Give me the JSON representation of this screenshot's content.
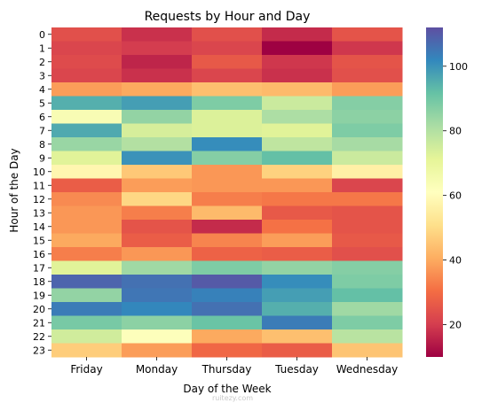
{
  "chart_data": {
    "type": "heatmap",
    "title": "Requests by Hour and Day",
    "xlabel": "Day of the Week",
    "ylabel": "Hour of the Day",
    "categories": [
      "Friday",
      "Monday",
      "Thursday",
      "Tuesday",
      "Wednesday"
    ],
    "rows": [
      "0",
      "1",
      "2",
      "3",
      "4",
      "5",
      "6",
      "7",
      "8",
      "9",
      "10",
      "11",
      "12",
      "13",
      "14",
      "15",
      "16",
      "17",
      "18",
      "19",
      "20",
      "21",
      "22",
      "23"
    ],
    "values": [
      [
        24,
        18,
        24,
        17,
        25
      ],
      [
        22,
        20,
        22,
        10,
        19
      ],
      [
        23,
        16,
        26,
        19,
        25
      ],
      [
        22,
        18,
        22,
        18,
        24
      ],
      [
        38,
        40,
        44,
        43,
        38
      ],
      [
        95,
        98,
        88,
        76,
        87
      ],
      [
        64,
        85,
        73,
        81,
        86
      ],
      [
        96,
        74,
        73,
        72,
        88
      ],
      [
        84,
        80,
        101,
        78,
        82
      ],
      [
        72,
        100,
        87,
        92,
        76
      ],
      [
        58,
        46,
        37,
        48,
        56
      ],
      [
        27,
        38,
        37,
        37,
        22
      ],
      [
        35,
        49,
        33,
        32,
        32
      ],
      [
        37,
        33,
        43,
        26,
        25
      ],
      [
        37,
        25,
        17,
        31,
        25
      ],
      [
        40,
        27,
        34,
        38,
        26
      ],
      [
        33,
        37,
        28,
        27,
        24
      ],
      [
        72,
        83,
        88,
        85,
        87
      ],
      [
        108,
        106,
        110,
        101,
        88
      ],
      [
        85,
        105,
        103,
        98,
        92
      ],
      [
        104,
        102,
        106,
        95,
        83
      ],
      [
        89,
        86,
        91,
        104,
        88
      ],
      [
        75,
        62,
        40,
        44,
        79
      ],
      [
        47,
        38,
        29,
        27,
        45
      ]
    ],
    "colorbar": {
      "range": [
        10,
        112
      ],
      "ticks": [
        20,
        40,
        60,
        80,
        100
      ],
      "colormap": "Spectral"
    }
  },
  "watermark": "ruitezy.com"
}
